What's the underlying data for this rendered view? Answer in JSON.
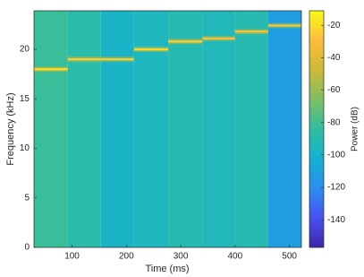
{
  "chart_data": {
    "type": "spectrogram",
    "xlabel": "Time (ms)",
    "ylabel": "Frequency (kHz)",
    "colorbar_label": "Power (dB)",
    "colormap": "parula",
    "xlim": [
      30,
      522
    ],
    "ylim": [
      0,
      23.9
    ],
    "xticks": [
      100,
      200,
      300,
      400,
      500
    ],
    "yticks": [
      0,
      5,
      10,
      15,
      20
    ],
    "clim": [
      -157,
      -11
    ],
    "cticks": [
      -140,
      -120,
      -100,
      -80,
      -60,
      -40,
      -20
    ],
    "segments": [
      {
        "start": 30,
        "end": 92,
        "tone_khz": 18,
        "tone_db": -20,
        "floor_db": -82
      },
      {
        "start": 92,
        "end": 153,
        "tone_khz": 19,
        "tone_db": -25,
        "floor_db": -88
      },
      {
        "start": 153,
        "end": 214,
        "tone_khz": 19,
        "tone_db": -25,
        "floor_db": -98
      },
      {
        "start": 214,
        "end": 277,
        "tone_khz": 20,
        "tone_db": -22,
        "floor_db": -95
      },
      {
        "start": 277,
        "end": 340,
        "tone_khz": 20.8,
        "tone_db": -25,
        "floor_db": -90
      },
      {
        "start": 340,
        "end": 400,
        "tone_khz": 21.1,
        "tone_db": -30,
        "floor_db": -93
      },
      {
        "start": 400,
        "end": 461,
        "tone_khz": 21.8,
        "tone_db": -30,
        "floor_db": -90
      },
      {
        "start": 461,
        "end": 522,
        "tone_khz": 22.4,
        "tone_db": -28,
        "floor_db": -112
      }
    ]
  }
}
